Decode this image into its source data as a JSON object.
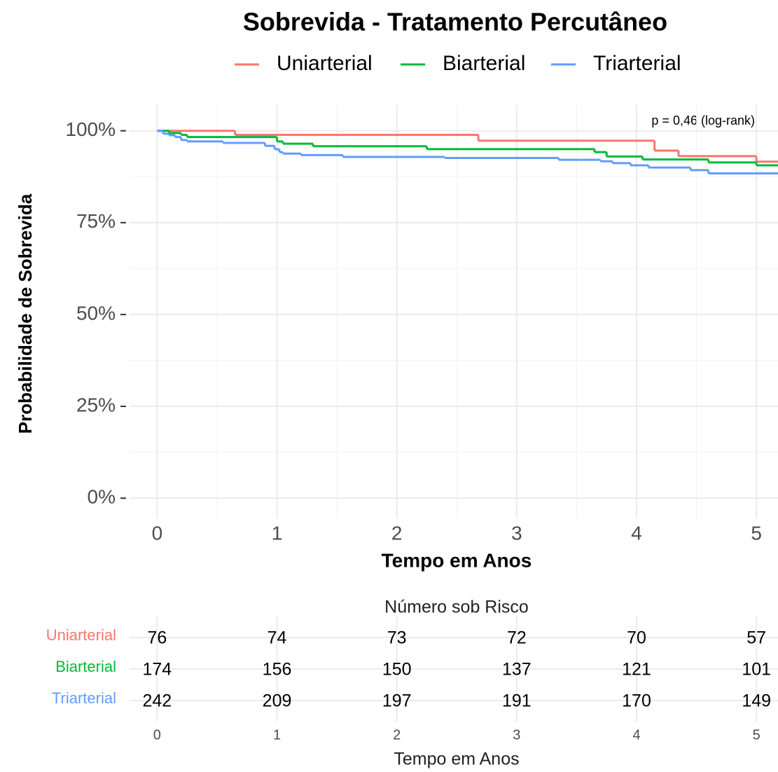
{
  "chart_data": {
    "type": "step",
    "title": "Sobrevida - Tratamento Percutâneo",
    "xlabel": "Tempo em Anos",
    "ylabel": "Probabilidade de Sobrevida",
    "annotation": "p = 0,46 (log-rank)",
    "legend": "top",
    "grid": true,
    "xlim": [
      -0.23,
      5.18
    ],
    "ylim": [
      -5.5,
      107
    ],
    "xticks": [
      0,
      1,
      2,
      3,
      4,
      5
    ],
    "yticks": [
      {
        "value": 0,
        "label": "0%"
      },
      {
        "value": 25,
        "label": "25%"
      },
      {
        "value": 50,
        "label": "50%"
      },
      {
        "value": 75,
        "label": "75%"
      },
      {
        "value": 100,
        "label": "100%"
      }
    ],
    "series": [
      {
        "name": "Uniarterial",
        "color": "#f8766d",
        "x": [
          0,
          0.65,
          2.68,
          4.15,
          4.35,
          5.0,
          5.18
        ],
        "values": [
          100,
          98.9,
          97.3,
          94.6,
          93.1,
          91.6,
          91.6
        ]
      },
      {
        "name": "Biarterial",
        "color": "#00ba38",
        "x": [
          0,
          0.1,
          0.2,
          0.25,
          1.0,
          1.05,
          1.3,
          2.25,
          3.65,
          3.75,
          4.05,
          4.6,
          5.0,
          5.18
        ],
        "values": [
          100,
          99.4,
          98.9,
          98.3,
          97.1,
          96.5,
          95.8,
          95.0,
          94.2,
          93.0,
          92.2,
          91.4,
          90.6,
          90.6
        ]
      },
      {
        "name": "Triarterial",
        "color": "#619cff",
        "x": [
          0,
          0.05,
          0.1,
          0.15,
          0.2,
          0.25,
          0.55,
          0.9,
          0.98,
          1.02,
          1.05,
          1.2,
          1.55,
          2.4,
          3.35,
          3.7,
          3.8,
          3.95,
          4.1,
          4.45,
          4.6,
          5.18
        ],
        "values": [
          100,
          99.2,
          98.8,
          98.3,
          97.5,
          97.1,
          96.7,
          95.9,
          95.0,
          94.2,
          93.8,
          93.4,
          92.9,
          92.6,
          92.1,
          91.7,
          91.2,
          90.6,
          90.0,
          89.3,
          88.4,
          88.4
        ]
      }
    ],
    "risk_table": {
      "title": "Número sob Risco",
      "xlabel": "Tempo em Anos",
      "times": [
        0,
        1,
        2,
        3,
        4,
        5
      ],
      "rows": [
        {
          "name": "Uniarterial",
          "color": "#f8766d",
          "values": [
            76,
            74,
            73,
            72,
            70,
            57
          ]
        },
        {
          "name": "Biarterial",
          "color": "#00ba38",
          "values": [
            174,
            156,
            150,
            137,
            121,
            101
          ]
        },
        {
          "name": "Triarterial",
          "color": "#619cff",
          "values": [
            242,
            209,
            197,
            191,
            170,
            149
          ]
        }
      ]
    }
  }
}
